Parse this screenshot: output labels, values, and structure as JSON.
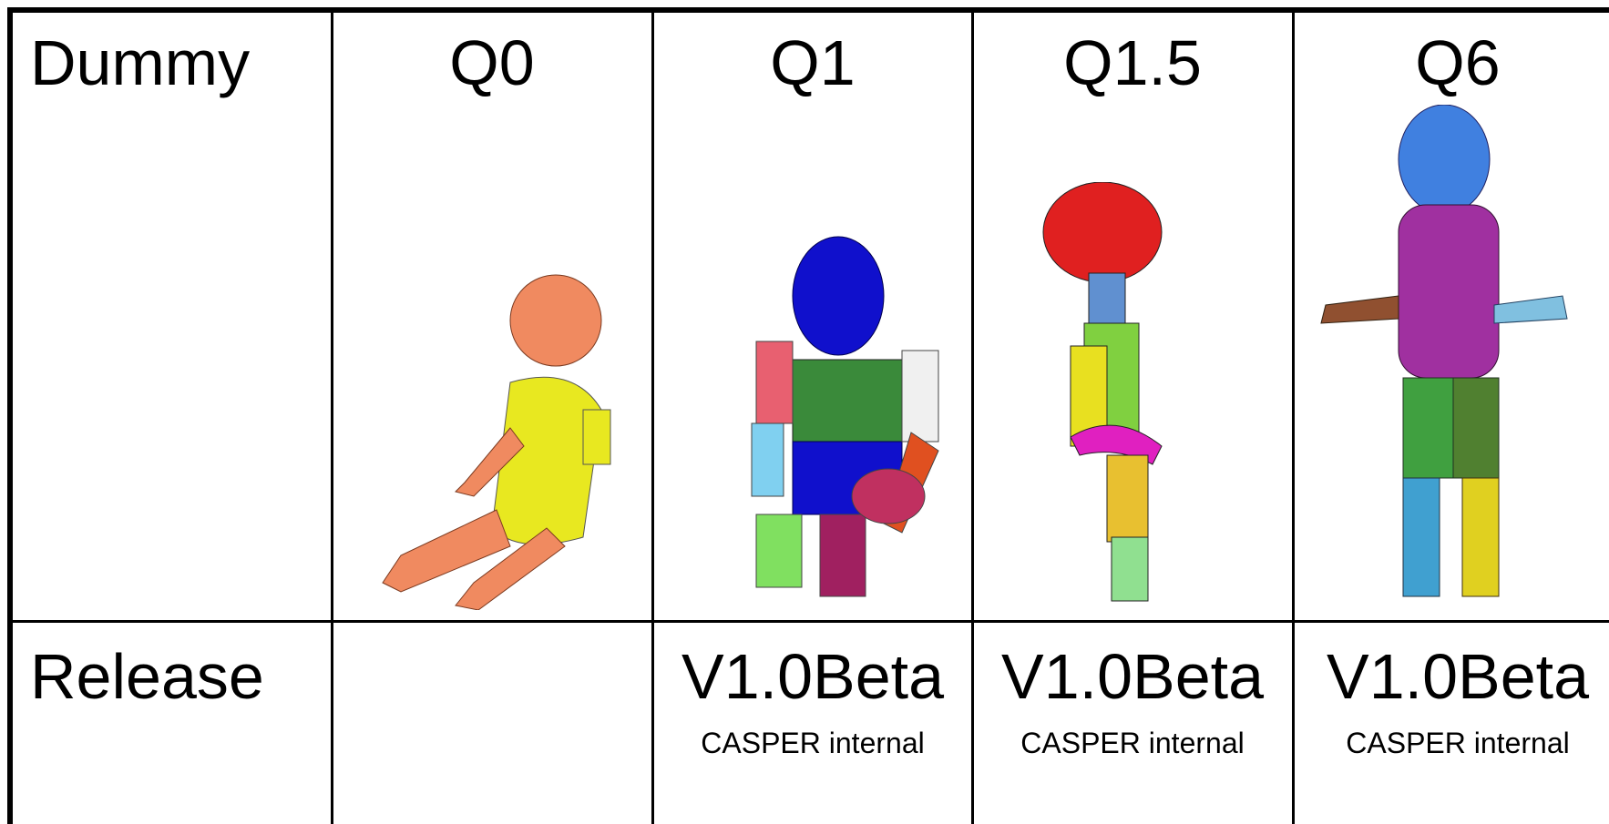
{
  "table": {
    "header": [
      "Dummy",
      "Q0",
      "Q1",
      "Q1.5",
      "Q6"
    ],
    "release": {
      "label": "Release",
      "versions": {
        "Q1": {
          "version": "V1.0Beta",
          "note": "CASPER internal"
        },
        "Q1.5": {
          "version": "V1.0Beta",
          "note": "CASPER internal"
        },
        "Q6": {
          "version": "V1.0Beta",
          "note": "CASPER internal"
        }
      }
    }
  }
}
